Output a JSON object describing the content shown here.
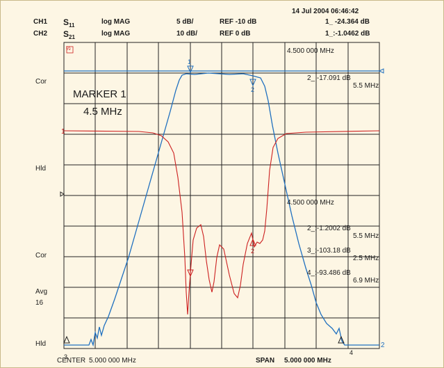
{
  "header": {
    "datetime": "14 Jul 2004  06:46:42",
    "ch1": {
      "label": "CH1",
      "param_main": "S",
      "param_sub": "11",
      "format": "log MAG",
      "scale": "5 dB/",
      "ref": "REF -10 dB",
      "marker": "1_ -24.364 dB"
    },
    "ch2": {
      "label": "CH2",
      "param_main": "S",
      "param_sub": "21",
      "format": "log MAG",
      "scale": "10 dB/",
      "ref": "REF 0 dB",
      "marker": "1_:-1.0462 dB"
    }
  },
  "left_labels": {
    "cor1": "Cor",
    "hld1": "Hld",
    "cor2": "Cor",
    "avg": "Avg",
    "avg_n": "16",
    "hld2": "Hld"
  },
  "plot": {
    "top_icon": "½",
    "marker_title": "MARKER 1",
    "marker_freq": "4.5 MHz",
    "ch1_marker_freq": "4.500 000 MHz",
    "ch1_m2_val": "2_ -17.091 dB",
    "ch1_m2_freq": "5.5 MHz",
    "ch2_marker_freq": "4.500 000 MHz",
    "ch2_m2_val": "2_:-1.2002 dB",
    "ch2_m2_freq": "5.5 MHz",
    "ch2_m3_val": "3_:-103.18 dB",
    "ch2_m3_freq": "2.5 MHz",
    "ch2_m4_val": "4_:-93.486 dB",
    "ch2_m4_freq": "6.9 MHz",
    "ref1_label": "1",
    "ref2_label": "2",
    "mk1": "1",
    "mk2": "2",
    "mk3": "3",
    "mk4": "4",
    "mk2b": "2"
  },
  "footer": {
    "center_label": "CENTER",
    "center_val": "5.000 000 MHz",
    "span_label": "SPAN",
    "span_val": "5.000 000 MHz"
  },
  "colors": {
    "ch1": "#cc1f1f",
    "ch2": "#1e6fbf",
    "grid": "#222222",
    "background": "#fdf6e4"
  }
}
